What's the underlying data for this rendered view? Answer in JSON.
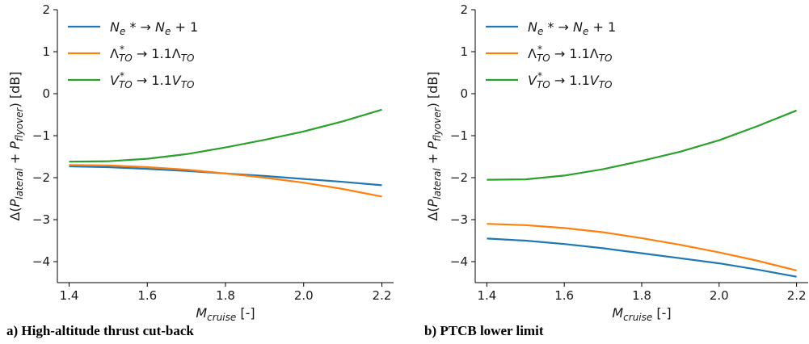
{
  "captions": {
    "a": "a) High-altitude thrust cut-back",
    "b": "b) PTCB lower limit"
  },
  "chart_data": [
    {
      "type": "line",
      "title": "",
      "caption": "a) High-altitude thrust cut-back",
      "xlabel": "M_cruise [-]",
      "ylabel": "Δ(P_lateral + P_flyover) [dB]",
      "xlim": [
        1.37,
        2.23
      ],
      "ylim": [
        -4.5,
        2
      ],
      "xticks": [
        1.4,
        1.6,
        1.8,
        2.0,
        2.2
      ],
      "yticks": [
        2,
        1,
        0,
        -1,
        -2,
        -3,
        -4
      ],
      "ytick_labels": [
        "2",
        "1",
        "0",
        "−1",
        "−2",
        "−3",
        "−4"
      ],
      "xtick_labels": [
        "1.4",
        "1.6",
        "1.8",
        "2.0",
        "2.2"
      ],
      "legend_position": "top-left",
      "grid": false,
      "x": [
        1.4,
        1.5,
        1.6,
        1.7,
        1.8,
        1.9,
        2.0,
        2.1,
        2.2
      ],
      "series": [
        {
          "name": "Ne* → Ne+1",
          "color": "#1f77b4",
          "values": [
            -1.73,
            -1.75,
            -1.79,
            -1.84,
            -1.9,
            -1.96,
            -2.03,
            -2.1,
            -2.18
          ]
        },
        {
          "name": "Λ*TO → 1.1ΛTO",
          "color": "#ff7f0e",
          "values": [
            -1.7,
            -1.71,
            -1.75,
            -1.81,
            -1.9,
            -2.0,
            -2.12,
            -2.27,
            -2.45
          ]
        },
        {
          "name": "V*TO → 1.1VTO",
          "color": "#2ca02c",
          "values": [
            -1.62,
            -1.61,
            -1.55,
            -1.44,
            -1.28,
            -1.1,
            -0.9,
            -0.66,
            -0.38
          ]
        }
      ]
    },
    {
      "type": "line",
      "title": "",
      "caption": "b) PTCB lower limit",
      "xlabel": "M_cruise [-]",
      "ylabel": "Δ(P_lateral + P_flyover) [dB]",
      "xlim": [
        1.37,
        2.23
      ],
      "ylim": [
        -4.5,
        2
      ],
      "xticks": [
        1.4,
        1.6,
        1.8,
        2.0,
        2.2
      ],
      "yticks": [
        2,
        1,
        0,
        -1,
        -2,
        -3,
        -4
      ],
      "ytick_labels": [
        "2",
        "1",
        "0",
        "−1",
        "−2",
        "−3",
        "−4"
      ],
      "xtick_labels": [
        "1.4",
        "1.6",
        "1.8",
        "2.0",
        "2.2"
      ],
      "legend_position": "top-left",
      "grid": false,
      "x": [
        1.4,
        1.5,
        1.6,
        1.7,
        1.8,
        1.9,
        2.0,
        2.1,
        2.2
      ],
      "series": [
        {
          "name": "Ne* → Ne+1",
          "color": "#1f77b4",
          "values": [
            -3.45,
            -3.5,
            -3.58,
            -3.68,
            -3.8,
            -3.92,
            -4.04,
            -4.19,
            -4.36
          ]
        },
        {
          "name": "Λ*TO → 1.1ΛTO",
          "color": "#ff7f0e",
          "values": [
            -3.1,
            -3.13,
            -3.2,
            -3.3,
            -3.44,
            -3.6,
            -3.78,
            -3.98,
            -4.21
          ]
        },
        {
          "name": "V*TO → 1.1VTO",
          "color": "#2ca02c",
          "values": [
            -2.05,
            -2.04,
            -1.95,
            -1.8,
            -1.6,
            -1.38,
            -1.11,
            -0.77,
            -0.4
          ]
        }
      ]
    }
  ]
}
